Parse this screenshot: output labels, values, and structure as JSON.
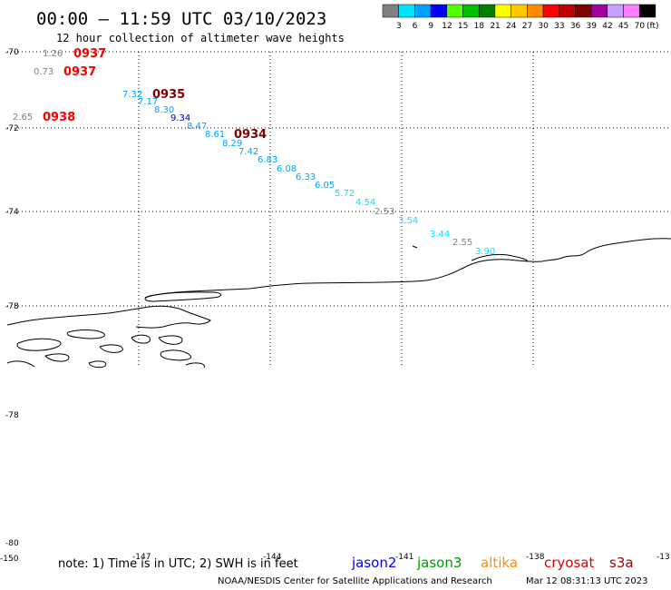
{
  "header": {
    "title": "00:00 – 11:59 UTC 03/10/2023",
    "subtitle": "12 hour collection of altimeter wave heights"
  },
  "legend": {
    "unit_label": "(ft)",
    "swatches": [
      {
        "label": "3",
        "color": "#808080"
      },
      {
        "label": "6",
        "color": "#00e5ff"
      },
      {
        "label": "9",
        "color": "#00a2ff"
      },
      {
        "label": "12",
        "color": "#0000ff"
      },
      {
        "label": "15",
        "color": "#55ff00"
      },
      {
        "label": "18",
        "color": "#00c000"
      },
      {
        "label": "21",
        "color": "#008000"
      },
      {
        "label": "24",
        "color": "#ffff00"
      },
      {
        "label": "27",
        "color": "#ffc800"
      },
      {
        "label": "30",
        "color": "#ff8c00"
      },
      {
        "label": "33",
        "color": "#ff0000"
      },
      {
        "label": "36",
        "color": "#c00000"
      },
      {
        "label": "39",
        "color": "#800000"
      },
      {
        "label": "42",
        "color": "#a000a0"
      },
      {
        "label": "45",
        "color": "#c8a0ff"
      },
      {
        "label": "70",
        "color": "#ff80ff"
      },
      {
        "label": "",
        "color": "#000000"
      }
    ]
  },
  "axes": {
    "lat_labels": [
      "-70",
      "-72",
      "-74",
      "-78",
      "-78",
      "-80"
    ],
    "lon_labels": [
      "-150",
      "-147",
      "-144",
      "-141",
      "-138",
      "-13"
    ]
  },
  "observations": [
    {
      "value": "1.26",
      "color": "#808080"
    },
    {
      "value": "0.73",
      "color": "#808080"
    },
    {
      "value": "2.65",
      "color": "#808080"
    },
    {
      "value": "7.32",
      "color": "#00a2ff"
    },
    {
      "value": "7.17",
      "color": "#00a2ff"
    },
    {
      "value": "8.30",
      "color": "#00a2ff"
    },
    {
      "value": "9.34",
      "color": "#0000aa"
    },
    {
      "value": "8.47",
      "color": "#00a2ff"
    },
    {
      "value": "8.61",
      "color": "#00a2ff"
    },
    {
      "value": "8.29",
      "color": "#00a2ff"
    },
    {
      "value": "7.42",
      "color": "#00a2ff"
    },
    {
      "value": "6.83",
      "color": "#00a2ff"
    },
    {
      "value": "6.08",
      "color": "#00a2ff"
    },
    {
      "value": "6.33",
      "color": "#00a2ff"
    },
    {
      "value": "6.05",
      "color": "#00a2ff"
    },
    {
      "value": "5.72",
      "color": "#00e5ff"
    },
    {
      "value": "4.54",
      "color": "#00e5ff"
    },
    {
      "value": "2.53",
      "color": "#808080"
    },
    {
      "value": "3.54",
      "color": "#00e5ff"
    },
    {
      "value": "3.44",
      "color": "#00e5ff"
    },
    {
      "value": "2.55",
      "color": "#808080"
    },
    {
      "value": "3.90",
      "color": "#00e5ff"
    }
  ],
  "pass_times": [
    {
      "value": "0937",
      "color": "#ff0000"
    },
    {
      "value": "0937",
      "color": "#ff0000"
    },
    {
      "value": "0935",
      "color": "#800000"
    },
    {
      "value": "0938",
      "color": "#ff0000"
    },
    {
      "value": "0934",
      "color": "#800000"
    }
  ],
  "footer": {
    "note": "note: 1) Time is in UTC; 2) SWH is in feet",
    "satellites": [
      {
        "name": "jason2",
        "color": "#0000ff"
      },
      {
        "name": "jason3",
        "color": "#009900"
      },
      {
        "name": "altika",
        "color": "#ff8c00"
      },
      {
        "name": "cryosat",
        "color": "#dd0000"
      },
      {
        "name": "s3a",
        "color": "#990000"
      }
    ],
    "credit": "NOAA/NESDIS Center for Satellite Applications and Research",
    "timestamp": "Mar 12 08:31:13 UTC 2023"
  }
}
